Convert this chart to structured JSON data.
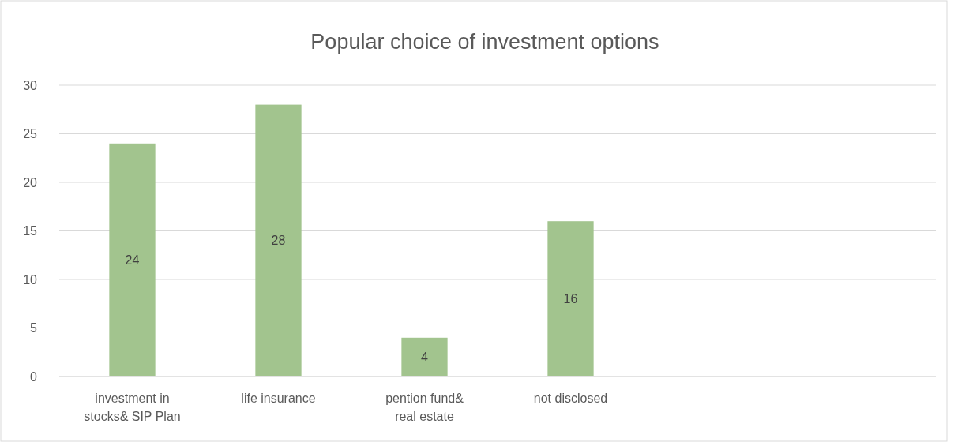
{
  "chart_data": {
    "type": "bar",
    "title": "Popular choice of investment options",
    "categories": [
      "investment in stocks& SIP Plan",
      "life insurance",
      "pention fund& real estate",
      "not disclosed",
      null,
      null
    ],
    "values": [
      24,
      28,
      4,
      16,
      null,
      null
    ],
    "color": "#a2c48e",
    "ylim": [
      0,
      30
    ],
    "yticks": [
      0,
      5,
      10,
      15,
      20,
      25,
      30
    ],
    "grid": "y",
    "data_labels": true
  }
}
